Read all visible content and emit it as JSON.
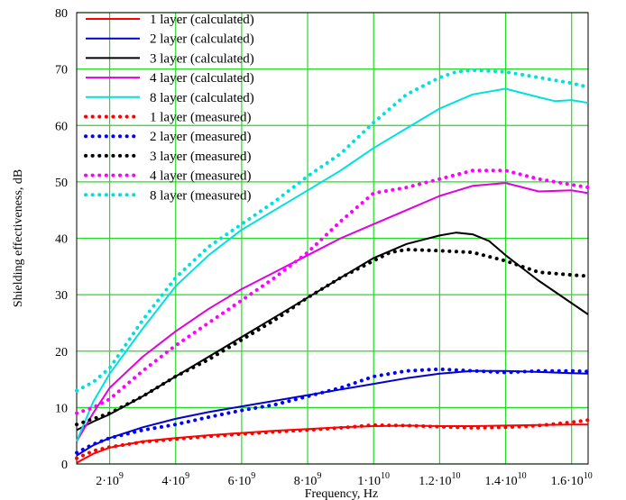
{
  "chart_data": {
    "type": "line",
    "title": "",
    "xlabel": "Frequency, Hz",
    "ylabel": "Shielding effectiveness, dB",
    "xlim": [
      1000000000,
      16500000000
    ],
    "ylim": [
      0,
      80
    ],
    "grid": true,
    "legend_position": "top-left",
    "x_ticks": [
      {
        "value": 2000000000,
        "mantissa": "2",
        "exponent": "9"
      },
      {
        "value": 4000000000,
        "mantissa": "4",
        "exponent": "9"
      },
      {
        "value": 6000000000,
        "mantissa": "6",
        "exponent": "9"
      },
      {
        "value": 8000000000,
        "mantissa": "8",
        "exponent": "9"
      },
      {
        "value": 10000000000,
        "mantissa": "1",
        "exponent": "10"
      },
      {
        "value": 12000000000,
        "mantissa": "1.2",
        "exponent": "10"
      },
      {
        "value": 14000000000,
        "mantissa": "1.4",
        "exponent": "10"
      },
      {
        "value": 16000000000,
        "mantissa": "1.6",
        "exponent": "10"
      }
    ],
    "y_ticks": [
      "0",
      "10",
      "20",
      "30",
      "40",
      "50",
      "60",
      "70",
      "80"
    ],
    "series": [
      {
        "name": "1 layer (calculated)",
        "color": "#ff0000",
        "style": "solid",
        "x": [
          1000000000.0,
          1500000000.0,
          2000000000.0,
          3000000000.0,
          4000000000.0,
          5000000000.0,
          6000000000.0,
          7000000000.0,
          8000000000.0,
          9000000000.0,
          10000000000.0,
          11000000000.0,
          12000000000.0,
          13000000000.0,
          14000000000.0,
          15000000000.0,
          16000000000.0,
          16500000000.0
        ],
        "y": [
          0.2,
          1.8,
          2.9,
          4.0,
          4.6,
          5.1,
          5.5,
          5.9,
          6.2,
          6.5,
          6.7,
          6.8,
          6.7,
          6.7,
          6.8,
          6.9,
          7.0,
          7.0
        ]
      },
      {
        "name": "2 layer (calculated)",
        "color": "#0000cc",
        "style": "solid",
        "x": [
          1000000000.0,
          1500000000.0,
          2000000000.0,
          3000000000.0,
          4000000000.0,
          5000000000.0,
          6000000000.0,
          7000000000.0,
          8000000000.0,
          9000000000.0,
          10000000000.0,
          11000000000.0,
          12000000000.0,
          13000000000.0,
          14000000000.0,
          15000000000.0,
          16000000000.0,
          16500000000.0
        ],
        "y": [
          1.5,
          3.3,
          4.6,
          6.5,
          8.0,
          9.2,
          10.2,
          11.2,
          12.2,
          13.2,
          14.2,
          15.2,
          16.0,
          16.5,
          16.5,
          16.3,
          16.1,
          16.0
        ]
      },
      {
        "name": "3 layer (calculated)",
        "color": "#000000",
        "style": "solid",
        "x": [
          1000000000.0,
          1500000000.0,
          2000000000.0,
          3000000000.0,
          4000000000.0,
          5000000000.0,
          6000000000.0,
          7000000000.0,
          8000000000.0,
          9000000000.0,
          10000000000.0,
          11000000000.0,
          12000000000.0,
          12500000000.0,
          13000000000.0,
          13500000000.0,
          14000000000.0,
          15000000000.0,
          16000000000.0,
          16500000000.0
        ],
        "y": [
          6.0,
          7.5,
          8.8,
          12.0,
          15.5,
          19.0,
          22.5,
          26.0,
          29.5,
          33.0,
          36.5,
          39.0,
          40.5,
          41.0,
          40.7,
          39.5,
          37.0,
          32.5,
          28.5,
          26.5
        ]
      },
      {
        "name": "4 layer (calculated)",
        "color": "#e000e0",
        "style": "solid",
        "x": [
          1000000000.0,
          1500000000.0,
          2000000000.0,
          3000000000.0,
          4000000000.0,
          5000000000.0,
          6000000000.0,
          7000000000.0,
          8000000000.0,
          9000000000.0,
          10000000000.0,
          11000000000.0,
          12000000000.0,
          13000000000.0,
          14000000000.0,
          15000000000.0,
          16000000000.0,
          16500000000.0
        ],
        "y": [
          4.0,
          9.0,
          13.5,
          19.0,
          23.5,
          27.5,
          31.0,
          34.0,
          37.0,
          40.0,
          42.5,
          45.0,
          47.5,
          49.3,
          49.8,
          48.3,
          48.5,
          48.0
        ]
      },
      {
        "name": "8 layer (calculated)",
        "color": "#00e0e0",
        "style": "solid",
        "x": [
          1000000000.0,
          1500000000.0,
          2000000000.0,
          3000000000.0,
          4000000000.0,
          5000000000.0,
          6000000000.0,
          7000000000.0,
          8000000000.0,
          9000000000.0,
          10000000000.0,
          11000000000.0,
          12000000000.0,
          13000000000.0,
          14000000000.0,
          15000000000.0,
          15500000000.0,
          16000000000.0,
          16500000000.0
        ],
        "y": [
          4.0,
          11.0,
          16.0,
          24.0,
          31.5,
          37.0,
          41.5,
          45.0,
          48.5,
          52.0,
          56.0,
          59.5,
          63.0,
          65.5,
          66.5,
          65.0,
          64.3,
          64.5,
          64.0
        ]
      },
      {
        "name": "1 layer (measured)",
        "color": "#ff0000",
        "style": "dotted",
        "x": [
          1000000000.0,
          1500000000.0,
          2000000000.0,
          3000000000.0,
          4000000000.0,
          5000000000.0,
          6000000000.0,
          7000000000.0,
          8000000000.0,
          9000000000.0,
          10000000000.0,
          11000000000.0,
          12000000000.0,
          13000000000.0,
          14000000000.0,
          15000000000.0,
          16000000000.0,
          16500000000.0
        ],
        "y": [
          1.0,
          2.3,
          3.0,
          3.9,
          4.4,
          4.9,
          5.3,
          5.7,
          6.0,
          6.4,
          6.9,
          6.8,
          6.6,
          6.4,
          6.5,
          6.8,
          7.4,
          7.8
        ]
      },
      {
        "name": "2 layer (measured)",
        "color": "#0000ff",
        "style": "dotted",
        "x": [
          1000000000.0,
          1500000000.0,
          2000000000.0,
          3000000000.0,
          4000000000.0,
          5000000000.0,
          6000000000.0,
          7000000000.0,
          8000000000.0,
          9000000000.0,
          10000000000.0,
          11000000000.0,
          12000000000.0,
          13000000000.0,
          14000000000.0,
          15000000000.0,
          16000000000.0,
          16500000000.0
        ],
        "y": [
          2.0,
          3.5,
          4.6,
          6.0,
          7.0,
          8.3,
          9.5,
          10.5,
          12.0,
          13.5,
          15.5,
          16.5,
          16.8,
          16.5,
          16.2,
          16.5,
          16.5,
          16.4
        ]
      },
      {
        "name": "3 layer (measured)",
        "color": "#000000",
        "style": "dotted",
        "x": [
          1000000000.0,
          1500000000.0,
          2000000000.0,
          3000000000.0,
          4000000000.0,
          5000000000.0,
          6000000000.0,
          7000000000.0,
          8000000000.0,
          9000000000.0,
          10000000000.0,
          10500000000.0,
          11000000000.0,
          12000000000.0,
          13000000000.0,
          14000000000.0,
          15000000000.0,
          16000000000.0,
          16500000000.0
        ],
        "y": [
          7.0,
          8.0,
          9.0,
          12.0,
          15.5,
          18.5,
          22.0,
          25.5,
          29.5,
          33.0,
          36.0,
          37.5,
          38.0,
          37.8,
          37.5,
          36.0,
          34.0,
          33.5,
          33.3
        ]
      },
      {
        "name": "4 layer (measured)",
        "color": "#ff00ff",
        "style": "dotted",
        "x": [
          1000000000.0,
          1500000000.0,
          2000000000.0,
          3000000000.0,
          4000000000.0,
          5000000000.0,
          6000000000.0,
          7000000000.0,
          8000000000.0,
          9000000000.0,
          10000000000.0,
          11000000000.0,
          12000000000.0,
          13000000000.0,
          14000000000.0,
          15000000000.0,
          16000000000.0,
          16500000000.0
        ],
        "y": [
          9.0,
          10.0,
          11.5,
          16.5,
          21.0,
          25.0,
          29.0,
          33.0,
          37.5,
          43.0,
          48.0,
          49.0,
          50.5,
          52.0,
          52.0,
          50.5,
          49.5,
          49.0
        ]
      },
      {
        "name": "8 layer (measured)",
        "color": "#00e0e0",
        "style": "dotted",
        "x": [
          1000000000.0,
          1500000000.0,
          2000000000.0,
          3000000000.0,
          4000000000.0,
          5000000000.0,
          6000000000.0,
          7000000000.0,
          8000000000.0,
          9000000000.0,
          10000000000.0,
          11000000000.0,
          12000000000.0,
          12500000000.0,
          13000000000.0,
          14000000000.0,
          15000000000.0,
          16000000000.0,
          16500000000.0
        ],
        "y": [
          13.0,
          14.5,
          17.0,
          25.5,
          33.0,
          38.5,
          42.5,
          46.5,
          51.0,
          55.0,
          60.5,
          65.5,
          68.5,
          69.5,
          69.8,
          69.5,
          68.5,
          67.5,
          66.8
        ]
      }
    ]
  }
}
